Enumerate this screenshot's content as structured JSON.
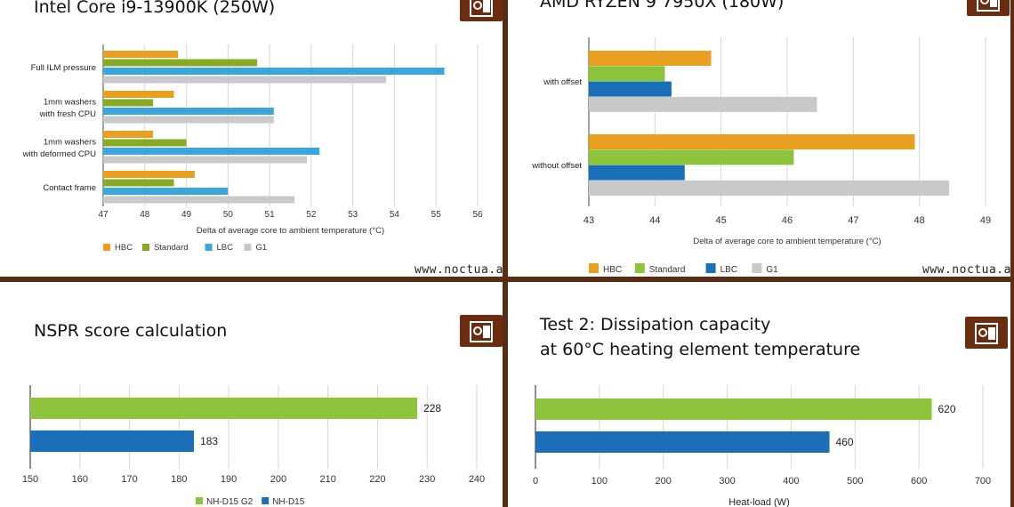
{
  "website": "www.noctua.at",
  "colors": {
    "hbc": "#e9a020",
    "standard": "#87aa24",
    "lbc": "#3ba6dc",
    "g1": "#c9c9c9",
    "standard_light": "#8cc43c",
    "lbc_dark": "#1a6fb8",
    "nh_d15_g2": "#8cc43c",
    "nh_d15": "#1a6fb8"
  },
  "chart_data": [
    {
      "type": "bar",
      "orientation": "horizontal",
      "title": "Intel Core i9-13900K (250W)",
      "xlabel": "Delta of average core to ambient temperature (°C)",
      "categories": [
        [
          "Full ILM pressure"
        ],
        [
          "1mm washers",
          "with fresh CPU"
        ],
        [
          "1mm washers",
          "with deformed CPU"
        ],
        [
          "Contact frame"
        ]
      ],
      "xlim": [
        47,
        56
      ],
      "xticks": [
        47,
        48,
        49,
        50,
        51,
        52,
        53,
        54,
        55,
        56
      ],
      "series": [
        {
          "name": "HBC",
          "color": "#e9a020",
          "values": [
            48.8,
            48.7,
            48.2,
            49.2
          ]
        },
        {
          "name": "Standard",
          "color": "#87aa24",
          "values": [
            50.7,
            48.2,
            49.0,
            48.7
          ]
        },
        {
          "name": "LBC",
          "color": "#3ba6dc",
          "values": [
            55.2,
            51.1,
            52.2,
            50.0
          ]
        },
        {
          "name": "G1",
          "color": "#c9c9c9",
          "values": [
            53.8,
            51.1,
            51.9,
            51.6
          ]
        }
      ],
      "legend": [
        "HBC",
        "Standard",
        "LBC",
        "G1"
      ],
      "legend_position": "bottom-left"
    },
    {
      "type": "bar",
      "orientation": "horizontal",
      "title": "AMD RYZEN 9 7950X (180W)",
      "xlabel": "Delta of average core to ambient temperature (°C)",
      "categories": [
        [
          "with offset"
        ],
        [
          "without offset"
        ]
      ],
      "xlim": [
        43,
        49
      ],
      "xticks": [
        43,
        44,
        45,
        46,
        47,
        48,
        49
      ],
      "series": [
        {
          "name": "HBC",
          "color": "#e9a020",
          "values": [
            44.85,
            47.93
          ]
        },
        {
          "name": "Standard",
          "color": "#8cc43c",
          "values": [
            44.15,
            46.1
          ]
        },
        {
          "name": "LBC",
          "color": "#1a6fb8",
          "values": [
            44.25,
            44.45
          ]
        },
        {
          "name": "G1",
          "color": "#c9c9c9",
          "values": [
            46.45,
            48.45
          ]
        }
      ],
      "legend": [
        "HBC",
        "Standard",
        "LBC",
        "G1"
      ],
      "legend_position": "bottom-left"
    },
    {
      "type": "bar",
      "orientation": "horizontal",
      "title": "NSPR score calculation",
      "xlabel": "",
      "xlim": [
        150,
        240
      ],
      "xticks": [
        150,
        160,
        170,
        180,
        190,
        200,
        210,
        220,
        230,
        240
      ],
      "series": [
        {
          "name": "NH-D15 G2",
          "color": "#8cc43c",
          "value": 228
        },
        {
          "name": "NH-D15",
          "color": "#1a6fb8",
          "value": 183
        }
      ],
      "legend": [
        "NH-D15 G2",
        "NH-D15"
      ],
      "legend_position": "bottom-center"
    },
    {
      "type": "bar",
      "orientation": "horizontal",
      "title": [
        "Test 2: Dissipation capacity",
        "at 60°C heating element temperature"
      ],
      "xlabel": "Heat-load (W)",
      "xlim": [
        0,
        700
      ],
      "xticks": [
        0,
        100,
        200,
        300,
        400,
        500,
        600,
        700
      ],
      "series": [
        {
          "color": "#8cc43c",
          "value": 620
        },
        {
          "color": "#1a6fb8",
          "value": 460
        }
      ]
    }
  ]
}
